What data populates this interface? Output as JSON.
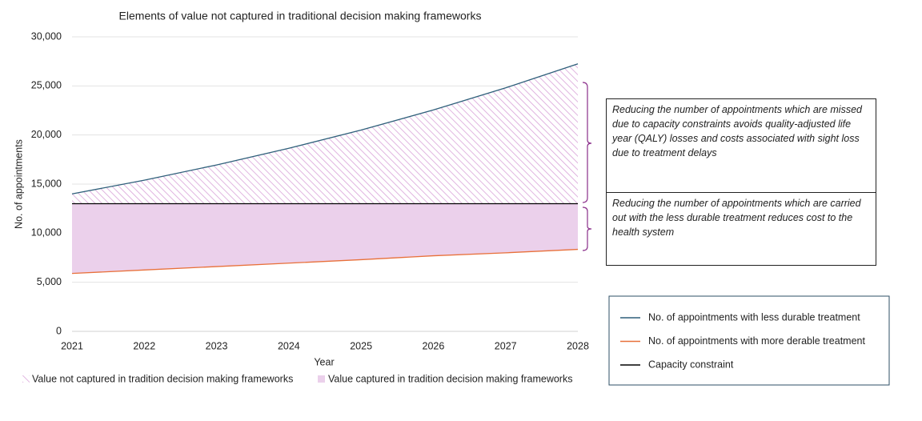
{
  "chart_data": {
    "type": "line",
    "title": "Elements of value not captured in traditional decision making frameworks",
    "x_label": "Year",
    "y_label": "No. of appointments",
    "x": [
      2021,
      2022,
      2023,
      2024,
      2025,
      2026,
      2027,
      2028
    ],
    "xlim": [
      2021,
      2028
    ],
    "xticks": [
      2021,
      2022,
      2023,
      2024,
      2025,
      2026,
      2027,
      2028
    ],
    "ylim": [
      0,
      30000
    ],
    "yticks": [
      0,
      {
        "value": 5000,
        "label": "5,000"
      },
      {
        "value": 10000,
        "label": "10,000"
      },
      {
        "value": 15000,
        "label": "15,000"
      },
      {
        "value": 20000,
        "label": "20,000"
      },
      {
        "value": 25000,
        "label": "25,000"
      },
      {
        "value": 30000,
        "label": "30,000"
      }
    ],
    "grid": true,
    "series": [
      {
        "name": "No. of appointments with less durable treatment",
        "color": "#2e5f7a",
        "values": [
          14000,
          15400,
          16950,
          18650,
          20500,
          22550,
          24800,
          27250
        ]
      },
      {
        "name": "No. of appointments with more derable treatment",
        "color": "#e8703a",
        "values": [
          5900,
          6250,
          6600,
          6950,
          7300,
          7700,
          8000,
          8350
        ]
      },
      {
        "name": "Capacity constraint",
        "color": "#000000",
        "values": [
          13000,
          13000,
          13000,
          13000,
          13000,
          13000,
          13000,
          13000
        ]
      }
    ],
    "areas": [
      {
        "name": "Value not captured in tradition decision making frameworks",
        "color": "#d9a3d9",
        "pattern": "hatch"
      },
      {
        "name": "Value captured in tradition decision making frameworks",
        "color": "#ebd0eb"
      }
    ],
    "annotations": [
      "Reducing the number of appointments which are missed due to capacity constraints avoids quality-adjusted life year (QALY) losses and costs associated with sight loss due to treatment delays",
      "Reducing the number of appointments which are carried out with the less durable treatment reduces cost to the health system"
    ]
  }
}
